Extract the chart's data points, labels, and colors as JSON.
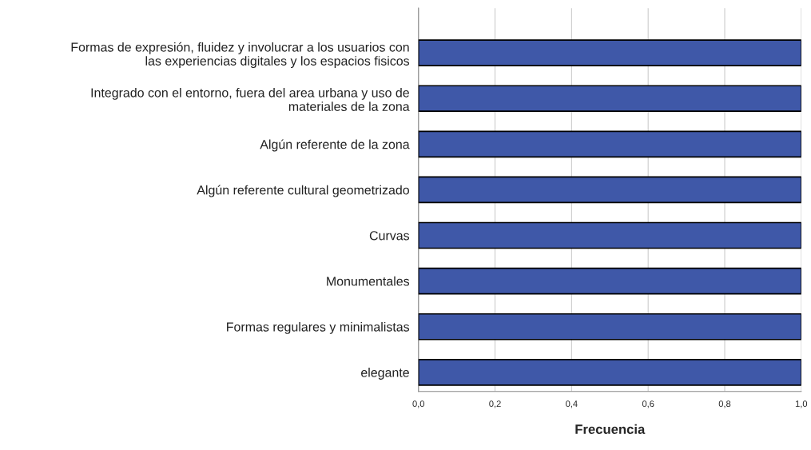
{
  "chart_data": {
    "type": "bar",
    "orientation": "horizontal",
    "xlabel": "Frecuencia",
    "categories": [
      "Formas de expresión, fluidez y involucrar a los usuarios con\nlas experiencias digitales y los espacios fisicos",
      "Integrado con el entorno, fuera del area urbana y uso de\nmateriales de la zona",
      "Algún referente de la zona",
      "Algún referente cultural geometrizado",
      "Curvas",
      "Monumentales",
      "Formas regulares y minimalistas",
      "elegante"
    ],
    "values": [
      1.0,
      1.0,
      1.0,
      1.0,
      1.0,
      1.0,
      1.0,
      1.0
    ],
    "color": "#3f58a8",
    "xlim": [
      0,
      1.0
    ],
    "xticks": [
      {
        "value": 0,
        "label": "0,0"
      },
      {
        "value": 0.2,
        "label": "0,2"
      },
      {
        "value": 0.4,
        "label": "0,4"
      },
      {
        "value": 0.6,
        "label": "0,6"
      },
      {
        "value": 0.8,
        "label": "0,8"
      },
      {
        "value": 1.0,
        "label": "1,0"
      }
    ],
    "grid": "x"
  }
}
